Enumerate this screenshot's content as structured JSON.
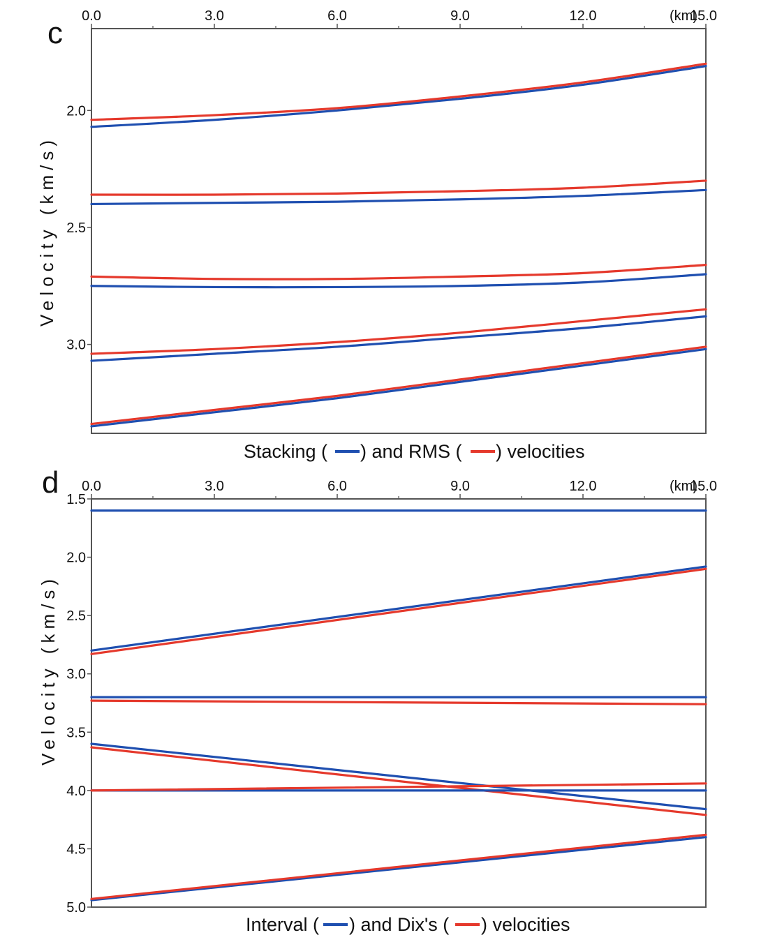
{
  "colors": {
    "blue": "#1f4fb0",
    "red": "#e5392c",
    "axis": "#555555"
  },
  "chart_data": [
    {
      "type": "line",
      "panel_label": "c",
      "x_unit_label": "(km)",
      "xlim": [
        0,
        15
      ],
      "x_ticks": [
        "0.0",
        "3.0",
        "6.0",
        "9.0",
        "12.0",
        "15.0"
      ],
      "ylim": [
        1.65,
        3.38
      ],
      "y_ticks": [
        "2.0",
        "2.5",
        "3.0"
      ],
      "ylabel": "Velocity (km/s)",
      "caption": {
        "before": "Stacking (",
        "mid": ") and RMS (",
        "after": ") velocities"
      },
      "x": [
        0,
        3,
        6,
        9,
        12,
        15
      ],
      "series": [
        {
          "name": "Stacking velocity, horizon 1",
          "color": "blue",
          "values": [
            2.07,
            2.04,
            2.0,
            1.95,
            1.89,
            1.81
          ]
        },
        {
          "name": "RMS velocity, horizon 1",
          "color": "red",
          "values": [
            2.04,
            2.02,
            1.99,
            1.94,
            1.88,
            1.8
          ]
        },
        {
          "name": "Stacking velocity, horizon 2",
          "color": "blue",
          "values": [
            2.4,
            2.395,
            2.39,
            2.38,
            2.365,
            2.34
          ]
        },
        {
          "name": "RMS velocity, horizon 2",
          "color": "red",
          "values": [
            2.36,
            2.36,
            2.355,
            2.345,
            2.33,
            2.3
          ]
        },
        {
          "name": "Stacking velocity, horizon 3",
          "color": "blue",
          "values": [
            2.75,
            2.755,
            2.755,
            2.75,
            2.735,
            2.7
          ]
        },
        {
          "name": "RMS velocity, horizon 3",
          "color": "red",
          "values": [
            2.71,
            2.72,
            2.72,
            2.71,
            2.695,
            2.66
          ]
        },
        {
          "name": "Stacking velocity, horizon 4",
          "color": "blue",
          "values": [
            3.07,
            3.04,
            3.01,
            2.97,
            2.93,
            2.88
          ]
        },
        {
          "name": "RMS velocity, horizon 4",
          "color": "red",
          "values": [
            3.04,
            3.02,
            2.99,
            2.95,
            2.9,
            2.85
          ]
        },
        {
          "name": "Stacking velocity, horizon 5",
          "color": "blue",
          "values": [
            3.35,
            3.29,
            3.23,
            3.16,
            3.09,
            3.02
          ]
        },
        {
          "name": "RMS velocity, horizon 5",
          "color": "red",
          "values": [
            3.34,
            3.28,
            3.22,
            3.15,
            3.08,
            3.01
          ]
        }
      ]
    },
    {
      "type": "line",
      "panel_label": "d",
      "x_unit_label": "(km)",
      "xlim": [
        0,
        15
      ],
      "x_ticks": [
        "0.0",
        "3.0",
        "6.0",
        "9.0",
        "12.0",
        "15.0"
      ],
      "ylim": [
        1.5,
        5.0
      ],
      "y_ticks": [
        "1.5",
        "2.0",
        "2.5",
        "3.0",
        "3.5",
        "4.0",
        "4.5",
        "5.0"
      ],
      "ylabel": "Velocity (km/s)",
      "caption": {
        "before": "Interval (",
        "mid": ") and Dix's (",
        "after": ") velocities"
      },
      "x": [
        0,
        15
      ],
      "series": [
        {
          "name": "Interval velocity, layer 1",
          "color": "blue",
          "values": [
            1.6,
            1.6
          ]
        },
        {
          "name": "Interval velocity, layer 2",
          "color": "blue",
          "values": [
            2.8,
            2.08
          ]
        },
        {
          "name": "Dix's velocity, layer 2",
          "color": "red",
          "values": [
            2.83,
            2.1
          ]
        },
        {
          "name": "Interval velocity, layer 3",
          "color": "blue",
          "values": [
            3.2,
            3.2
          ]
        },
        {
          "name": "Dix's velocity, layer 3",
          "color": "red",
          "values": [
            3.23,
            3.26
          ]
        },
        {
          "name": "Interval velocity, layer 4",
          "color": "blue",
          "values": [
            3.6,
            4.16
          ]
        },
        {
          "name": "Dix's velocity, layer 4",
          "color": "red",
          "values": [
            3.63,
            4.21
          ]
        },
        {
          "name": "Interval velocity, layer 5",
          "color": "blue",
          "values": [
            4.0,
            4.0
          ]
        },
        {
          "name": "Dix's velocity, layer 5",
          "color": "red",
          "values": [
            4.0,
            3.94
          ]
        },
        {
          "name": "Interval velocity, layer 6",
          "color": "blue",
          "values": [
            4.94,
            4.4
          ]
        },
        {
          "name": "Dix's velocity, layer 6",
          "color": "red",
          "values": [
            4.93,
            4.38
          ]
        }
      ]
    }
  ]
}
